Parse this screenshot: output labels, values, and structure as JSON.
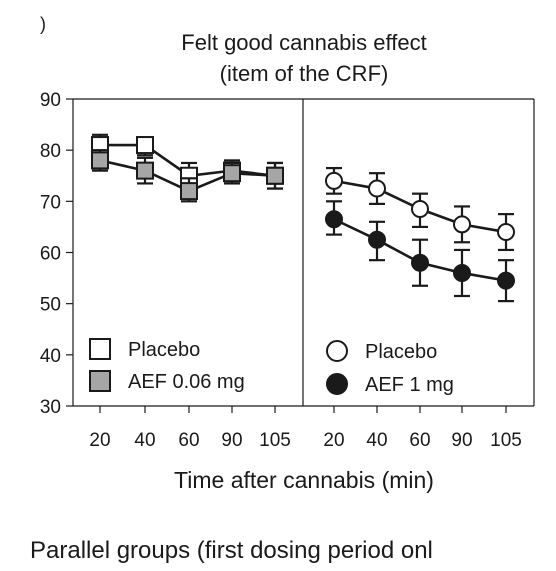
{
  "panel_label": ")",
  "footer_text": "Parallel groups (first dosing period onl",
  "chart_data": {
    "type": "line",
    "title": "Felt good cannabis effect",
    "subtitle": "(item of the CRF)",
    "xlabel": "Time after cannabis (min)",
    "ylabel": "",
    "ylim": [
      30,
      90
    ],
    "yticks": [
      30,
      40,
      50,
      60,
      70,
      80,
      90
    ],
    "grid": false,
    "panels": [
      {
        "categories": [
          "20",
          "40",
          "60",
          "90",
          "105"
        ],
        "legend_placement": "bottom-left",
        "series": [
          {
            "name": "Placebo",
            "marker": "square",
            "fill": "#ffffff",
            "values": [
              81,
              81,
              75,
              76,
              75
            ],
            "err_low": [
              79,
              79,
              72.5,
              73.5,
              72.5
            ],
            "err_high": [
              83,
              82.5,
              77.5,
              78,
              77.5
            ]
          },
          {
            "name": "AEF 0.06 mg",
            "marker": "square",
            "fill": "#a6a6a6",
            "values": [
              78,
              76,
              72,
              75.5,
              75
            ],
            "err_low": [
              76,
              73.5,
              70,
              73.5,
              72.5
            ],
            "err_high": [
              80,
              78.5,
              74.5,
              77.5,
              77.5
            ]
          }
        ]
      },
      {
        "categories": [
          "20",
          "40",
          "60",
          "90",
          "105"
        ],
        "legend_placement": "bottom-left",
        "series": [
          {
            "name": "Placebo",
            "marker": "circle",
            "fill": "#ffffff",
            "values": [
              74,
              72.5,
              68.5,
              65.5,
              64
            ],
            "err_low": [
              71.5,
              69.5,
              65,
              62,
              60.5
            ],
            "err_high": [
              76.5,
              75.5,
              71.5,
              69,
              67.5
            ]
          },
          {
            "name": "AEF 1 mg",
            "marker": "circle",
            "fill": "#1a1a1a",
            "values": [
              66.5,
              62.5,
              58,
              56,
              54.5
            ],
            "err_low": [
              63.5,
              58.5,
              53.5,
              51.5,
              50.5
            ],
            "err_high": [
              70,
              66,
              62.5,
              60.5,
              58.5
            ]
          }
        ]
      }
    ]
  }
}
